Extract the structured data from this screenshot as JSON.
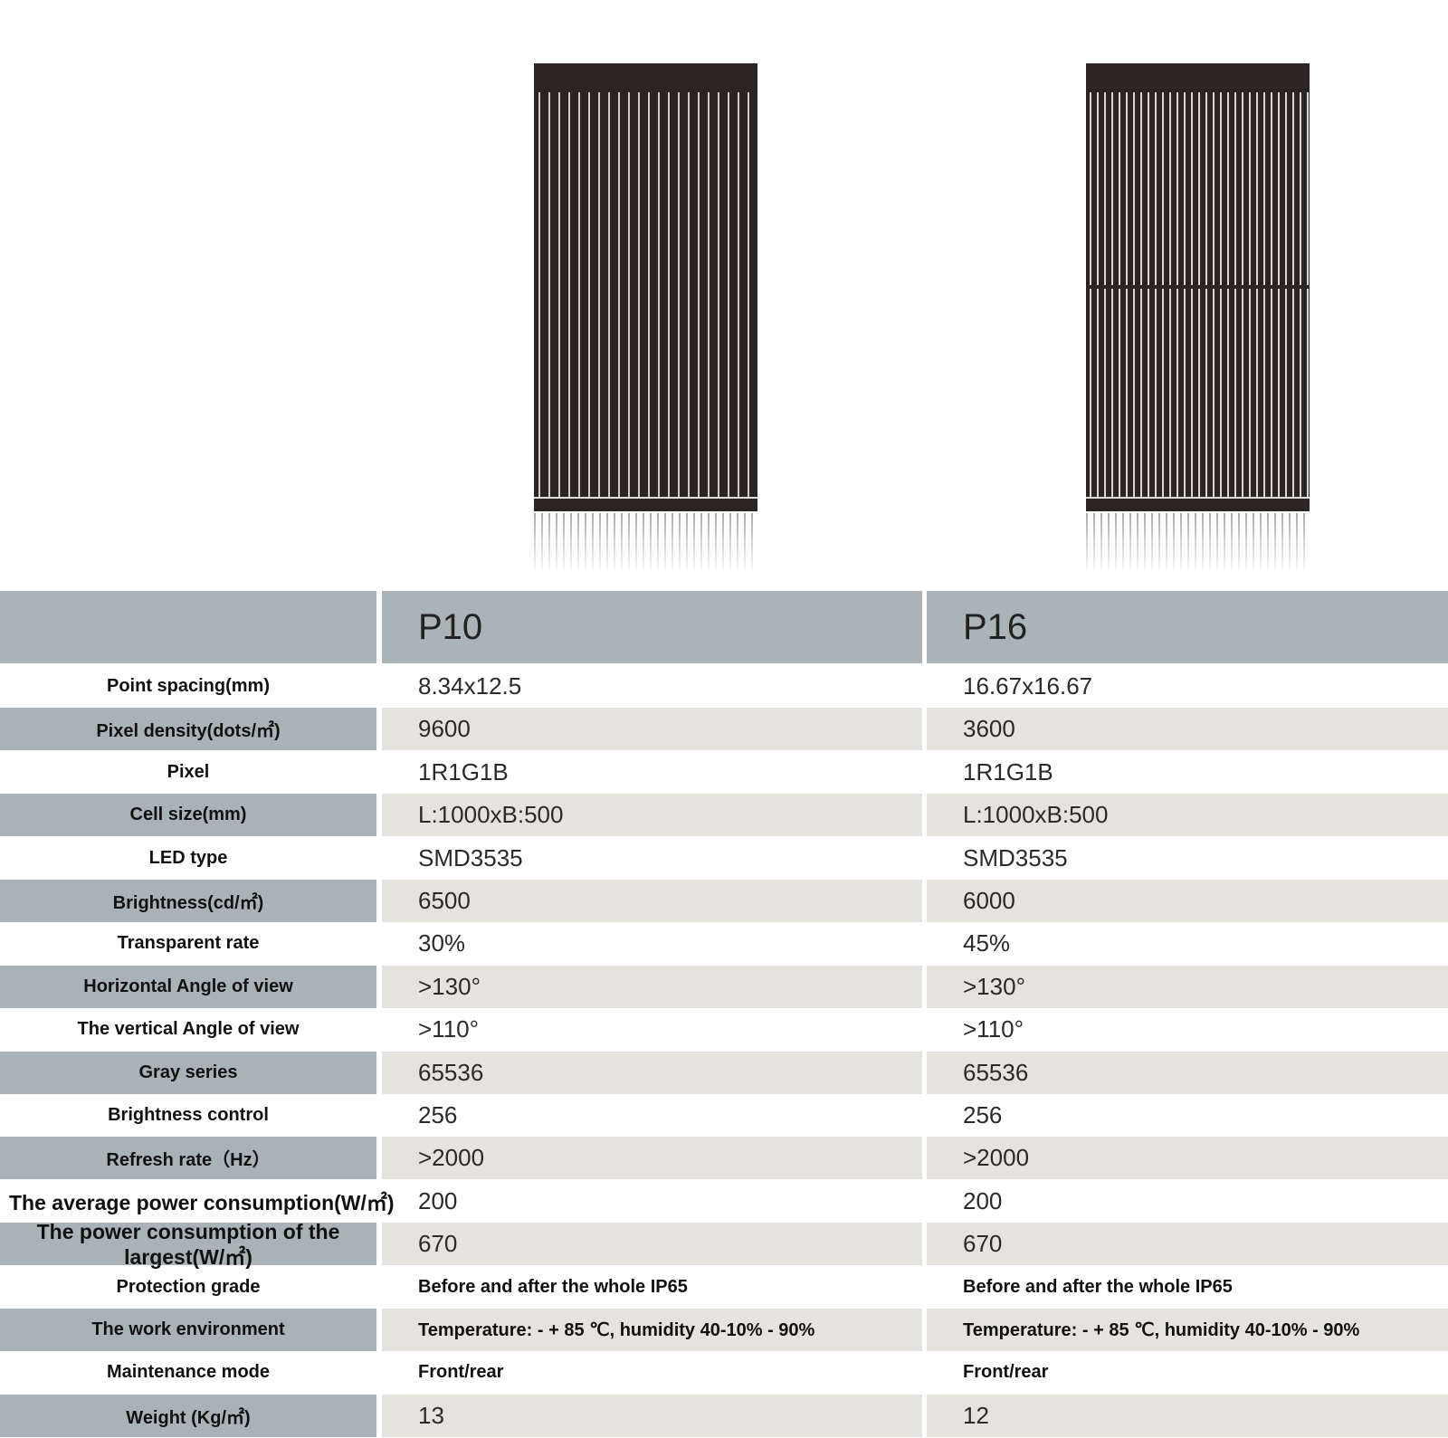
{
  "products": [
    {
      "name": "P10"
    },
    {
      "name": "P16"
    }
  ],
  "rows": [
    {
      "label": "Point spacing(mm)",
      "p10": "8.34x12.5",
      "p16": "16.67x16.67"
    },
    {
      "label": "Pixel density(dots/㎡)",
      "p10": "9600",
      "p16": "3600"
    },
    {
      "label": "Pixel",
      "p10": "1R1G1B",
      "p16": "1R1G1B"
    },
    {
      "label": "Cell size(mm)",
      "p10": "L:1000xB:500",
      "p16": "L:1000xB:500"
    },
    {
      "label": "LED type",
      "p10": "SMD3535",
      "p16": "SMD3535"
    },
    {
      "label": "Brightness(cd/㎡)",
      "p10": "6500",
      "p16": "6000"
    },
    {
      "label": "Transparent rate",
      "p10": "30%",
      "p16": "45%"
    },
    {
      "label": "Horizontal Angle of view",
      "p10": ">130°",
      "p16": ">130°"
    },
    {
      "label": "The vertical Angle of view",
      "p10": ">110°",
      "p16": ">110°"
    },
    {
      "label": "Gray series",
      "p10": "65536",
      "p16": "65536"
    },
    {
      "label": "Brightness control",
      "p10": "256",
      "p16": "256"
    },
    {
      "label": "Refresh rate（Hz）",
      "p10": ">2000",
      "p16": ">2000"
    },
    {
      "label": "The average power consumption(W/㎡)",
      "p10": "200",
      "p16": "200"
    },
    {
      "label": "The power consumption of the largest(W/㎡)",
      "p10": "670",
      "p16": "670"
    },
    {
      "label": "Protection grade",
      "p10": "Before and after the whole IP65",
      "p16": "Before and after the whole IP65"
    },
    {
      "label": "The work environment",
      "p10": "Temperature: - + 85 ℃, humidity 40-10% - 90%",
      "p16": "Temperature: - + 85 ℃, humidity 40-10% - 90%"
    },
    {
      "label": "Maintenance mode",
      "p10": "Front/rear",
      "p16": "Front/rear"
    },
    {
      "label": "Weight (Kg/㎡)",
      "p10": "13",
      "p16": "12"
    }
  ],
  "colors": {
    "label_bg": "#a9b3b7",
    "value_bg": "#e6e2de"
  }
}
